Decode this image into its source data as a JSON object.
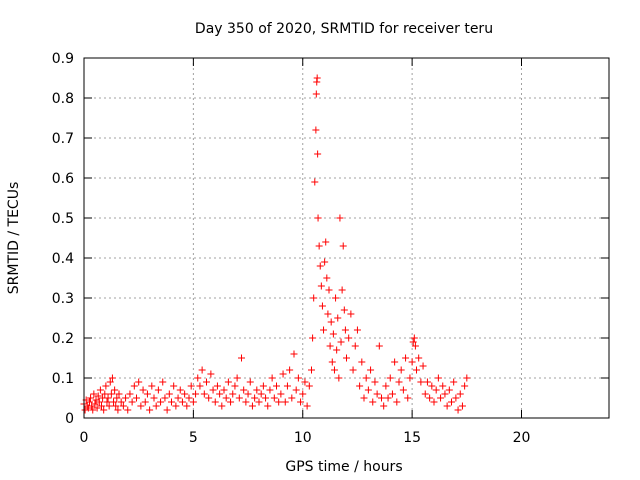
{
  "chart_data": {
    "type": "scatter",
    "title": "Day 350 of 2020, SRMTID for receiver teru",
    "xlabel": "GPS time / hours",
    "ylabel": "SRMTID / TECUs",
    "xlim": [
      0,
      24
    ],
    "ylim": [
      0,
      0.9
    ],
    "xticks": [
      0,
      5,
      10,
      15,
      20
    ],
    "yticks": [
      0,
      0.1,
      0.2,
      0.3,
      0.4,
      0.5,
      0.6,
      0.7,
      0.8,
      0.9
    ],
    "xtick_labels": [
      "0",
      "5",
      "10",
      "15",
      "20"
    ],
    "ytick_labels": [
      "0",
      "0.1",
      "0.2",
      "0.3",
      "0.4",
      "0.5",
      "0.6",
      "0.7",
      "0.8",
      "0.9"
    ],
    "grid": true,
    "marker": "+",
    "color": "#ff0000",
    "series": [
      {
        "name": "SRMTID",
        "points": [
          [
            0.0,
            0.035
          ],
          [
            0.05,
            0.02
          ],
          [
            0.1,
            0.045
          ],
          [
            0.15,
            0.03
          ],
          [
            0.2,
            0.025
          ],
          [
            0.25,
            0.04
          ],
          [
            0.3,
            0.05
          ],
          [
            0.35,
            0.03
          ],
          [
            0.4,
            0.02
          ],
          [
            0.45,
            0.06
          ],
          [
            0.5,
            0.035
          ],
          [
            0.55,
            0.045
          ],
          [
            0.6,
            0.025
          ],
          [
            0.65,
            0.055
          ],
          [
            0.7,
            0.04
          ],
          [
            0.75,
            0.07
          ],
          [
            0.8,
            0.03
          ],
          [
            0.85,
            0.05
          ],
          [
            0.9,
            0.02
          ],
          [
            0.95,
            0.06
          ],
          [
            1.0,
            0.08
          ],
          [
            1.05,
            0.04
          ],
          [
            1.1,
            0.05
          ],
          [
            1.15,
            0.03
          ],
          [
            1.2,
            0.09
          ],
          [
            1.25,
            0.06
          ],
          [
            1.3,
            0.1
          ],
          [
            1.35,
            0.04
          ],
          [
            1.4,
            0.07
          ],
          [
            1.45,
            0.03
          ],
          [
            1.5,
            0.05
          ],
          [
            1.55,
            0.02
          ],
          [
            1.6,
            0.06
          ],
          [
            1.7,
            0.04
          ],
          [
            1.8,
            0.03
          ],
          [
            1.9,
            0.05
          ],
          [
            2.0,
            0.02
          ],
          [
            2.1,
            0.06
          ],
          [
            2.2,
            0.04
          ],
          [
            2.3,
            0.08
          ],
          [
            2.4,
            0.05
          ],
          [
            2.5,
            0.09
          ],
          [
            2.6,
            0.03
          ],
          [
            2.7,
            0.07
          ],
          [
            2.8,
            0.04
          ],
          [
            2.9,
            0.06
          ],
          [
            3.0,
            0.02
          ],
          [
            3.1,
            0.08
          ],
          [
            3.2,
            0.05
          ],
          [
            3.3,
            0.03
          ],
          [
            3.4,
            0.07
          ],
          [
            3.5,
            0.04
          ],
          [
            3.6,
            0.09
          ],
          [
            3.7,
            0.05
          ],
          [
            3.8,
            0.02
          ],
          [
            3.9,
            0.06
          ],
          [
            4.0,
            0.04
          ],
          [
            4.1,
            0.08
          ],
          [
            4.2,
            0.03
          ],
          [
            4.3,
            0.05
          ],
          [
            4.4,
            0.07
          ],
          [
            4.5,
            0.04
          ],
          [
            4.6,
            0.06
          ],
          [
            4.7,
            0.03
          ],
          [
            4.8,
            0.05
          ],
          [
            4.9,
            0.08
          ],
          [
            5.0,
            0.04
          ],
          [
            5.1,
            0.06
          ],
          [
            5.2,
            0.1
          ],
          [
            5.3,
            0.08
          ],
          [
            5.4,
            0.12
          ],
          [
            5.5,
            0.06
          ],
          [
            5.6,
            0.09
          ],
          [
            5.7,
            0.05
          ],
          [
            5.8,
            0.11
          ],
          [
            5.9,
            0.07
          ],
          [
            6.0,
            0.04
          ],
          [
            6.1,
            0.08
          ],
          [
            6.2,
            0.06
          ],
          [
            6.3,
            0.03
          ],
          [
            6.4,
            0.07
          ],
          [
            6.5,
            0.05
          ],
          [
            6.6,
            0.09
          ],
          [
            6.7,
            0.04
          ],
          [
            6.8,
            0.06
          ],
          [
            6.9,
            0.08
          ],
          [
            7.0,
            0.1
          ],
          [
            7.1,
            0.05
          ],
          [
            7.2,
            0.15
          ],
          [
            7.3,
            0.07
          ],
          [
            7.4,
            0.04
          ],
          [
            7.5,
            0.06
          ],
          [
            7.6,
            0.09
          ],
          [
            7.7,
            0.03
          ],
          [
            7.8,
            0.05
          ],
          [
            7.9,
            0.07
          ],
          [
            8.0,
            0.04
          ],
          [
            8.1,
            0.06
          ],
          [
            8.2,
            0.08
          ],
          [
            8.3,
            0.05
          ],
          [
            8.4,
            0.03
          ],
          [
            8.5,
            0.07
          ],
          [
            8.6,
            0.1
          ],
          [
            8.7,
            0.05
          ],
          [
            8.8,
            0.08
          ],
          [
            8.9,
            0.04
          ],
          [
            9.0,
            0.06
          ],
          [
            9.1,
            0.11
          ],
          [
            9.2,
            0.04
          ],
          [
            9.3,
            0.08
          ],
          [
            9.4,
            0.12
          ],
          [
            9.5,
            0.05
          ],
          [
            9.6,
            0.16
          ],
          [
            9.7,
            0.07
          ],
          [
            9.8,
            0.1
          ],
          [
            9.9,
            0.04
          ],
          [
            10.0,
            0.06
          ],
          [
            10.1,
            0.09
          ],
          [
            10.2,
            0.03
          ],
          [
            10.3,
            0.08
          ],
          [
            10.4,
            0.12
          ],
          [
            10.45,
            0.2
          ],
          [
            10.5,
            0.3
          ],
          [
            10.55,
            0.59
          ],
          [
            10.6,
            0.72
          ],
          [
            10.62,
            0.81
          ],
          [
            10.64,
            0.84
          ],
          [
            10.66,
            0.85
          ],
          [
            10.68,
            0.66
          ],
          [
            10.7,
            0.5
          ],
          [
            10.75,
            0.43
          ],
          [
            10.8,
            0.38
          ],
          [
            10.85,
            0.33
          ],
          [
            10.9,
            0.28
          ],
          [
            10.95,
            0.22
          ],
          [
            11.0,
            0.39
          ],
          [
            11.05,
            0.44
          ],
          [
            11.1,
            0.35
          ],
          [
            11.15,
            0.26
          ],
          [
            11.2,
            0.32
          ],
          [
            11.25,
            0.18
          ],
          [
            11.3,
            0.24
          ],
          [
            11.35,
            0.14
          ],
          [
            11.4,
            0.21
          ],
          [
            11.45,
            0.12
          ],
          [
            11.5,
            0.3
          ],
          [
            11.55,
            0.17
          ],
          [
            11.6,
            0.25
          ],
          [
            11.65,
            0.1
          ],
          [
            11.7,
            0.5
          ],
          [
            11.75,
            0.19
          ],
          [
            11.8,
            0.32
          ],
          [
            11.85,
            0.43
          ],
          [
            11.9,
            0.27
          ],
          [
            11.95,
            0.22
          ],
          [
            12.0,
            0.15
          ],
          [
            12.1,
            0.2
          ],
          [
            12.2,
            0.26
          ],
          [
            12.3,
            0.12
          ],
          [
            12.4,
            0.18
          ],
          [
            12.5,
            0.22
          ],
          [
            12.6,
            0.08
          ],
          [
            12.7,
            0.14
          ],
          [
            12.8,
            0.05
          ],
          [
            12.9,
            0.1
          ],
          [
            13.0,
            0.07
          ],
          [
            13.1,
            0.12
          ],
          [
            13.2,
            0.04
          ],
          [
            13.3,
            0.09
          ],
          [
            13.4,
            0.06
          ],
          [
            13.5,
            0.18
          ],
          [
            13.6,
            0.05
          ],
          [
            13.7,
            0.03
          ],
          [
            13.8,
            0.08
          ],
          [
            13.9,
            0.05
          ],
          [
            14.0,
            0.1
          ],
          [
            14.1,
            0.06
          ],
          [
            14.2,
            0.14
          ],
          [
            14.3,
            0.04
          ],
          [
            14.4,
            0.09
          ],
          [
            14.5,
            0.12
          ],
          [
            14.6,
            0.07
          ],
          [
            14.7,
            0.15
          ],
          [
            14.8,
            0.05
          ],
          [
            14.9,
            0.1
          ],
          [
            15.0,
            0.14
          ],
          [
            15.05,
            0.19
          ],
          [
            15.1,
            0.2
          ],
          [
            15.15,
            0.18
          ],
          [
            15.2,
            0.12
          ],
          [
            15.3,
            0.15
          ],
          [
            15.4,
            0.09
          ],
          [
            15.5,
            0.13
          ],
          [
            15.6,
            0.06
          ],
          [
            15.7,
            0.09
          ],
          [
            15.8,
            0.05
          ],
          [
            15.9,
            0.08
          ],
          [
            16.0,
            0.04
          ],
          [
            16.1,
            0.07
          ],
          [
            16.2,
            0.1
          ],
          [
            16.3,
            0.05
          ],
          [
            16.4,
            0.08
          ],
          [
            16.5,
            0.06
          ],
          [
            16.6,
            0.03
          ],
          [
            16.7,
            0.07
          ],
          [
            16.8,
            0.04
          ],
          [
            16.9,
            0.09
          ],
          [
            17.0,
            0.05
          ],
          [
            17.1,
            0.02
          ],
          [
            17.2,
            0.06
          ],
          [
            17.3,
            0.03
          ],
          [
            17.4,
            0.08
          ],
          [
            17.5,
            0.1
          ]
        ]
      }
    ]
  }
}
